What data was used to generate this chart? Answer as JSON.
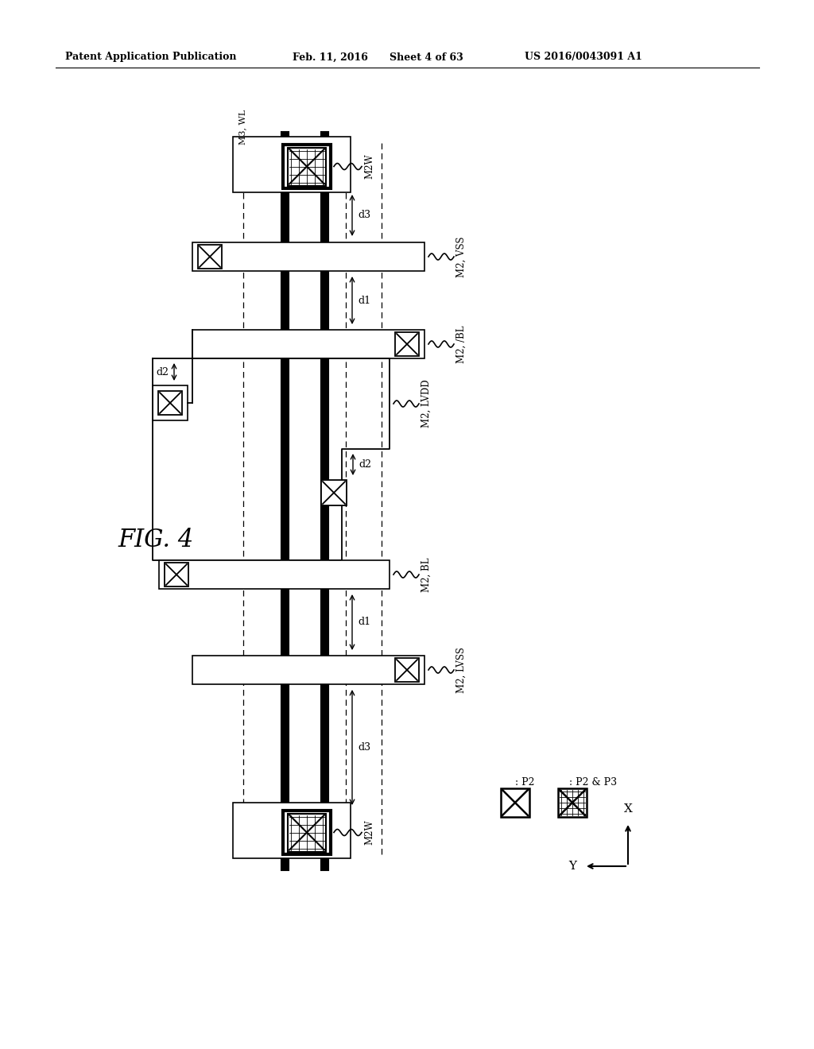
{
  "bg_color": "#ffffff",
  "header_text": "Patent Application Publication",
  "header_date": "Feb. 11, 2016",
  "header_sheet": "Sheet 4 of 63",
  "header_patent": "US 2016/0043091 A1",
  "fig_label": "FIG. 4"
}
